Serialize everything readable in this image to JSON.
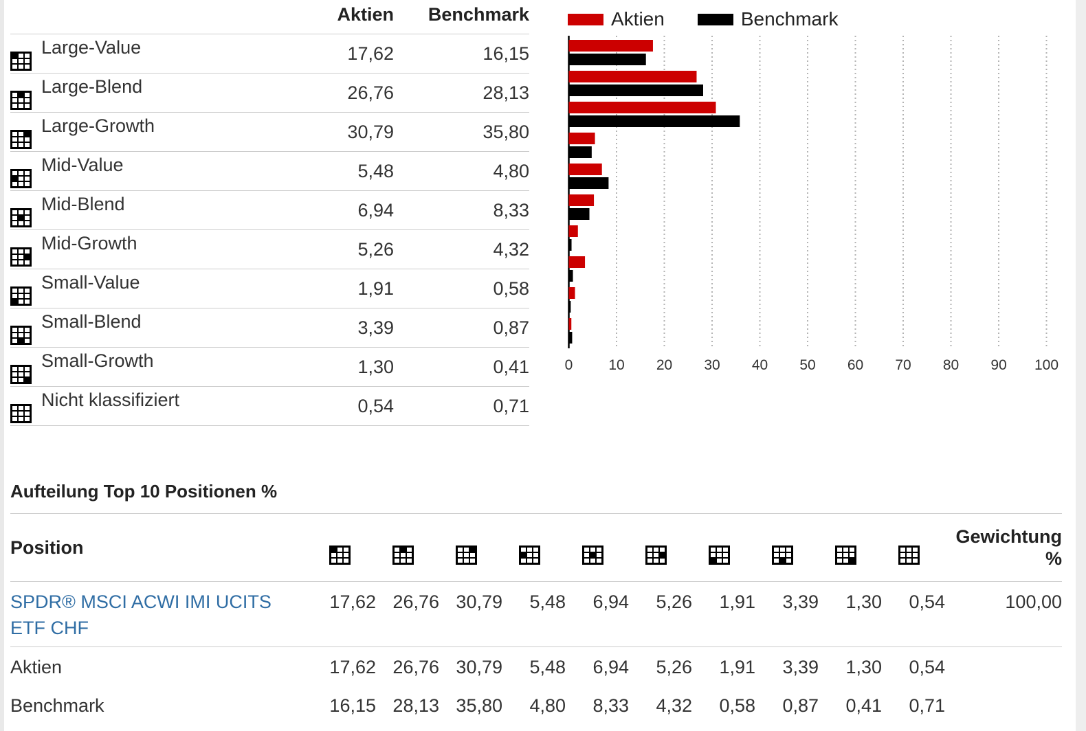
{
  "colors": {
    "aktien_red": "#cc0000",
    "benchmark_black": "#000000",
    "link_blue": "#2f6da4",
    "grid_gray": "#b3b3b3",
    "border_gray": "#cccccc"
  },
  "style_breakdown": {
    "column_headers": [
      "Aktien",
      "Benchmark"
    ],
    "rows": [
      {
        "label": "Large-Value",
        "icon": "stylebox-large-value-icon",
        "style_index": 0,
        "aktien": 17.62,
        "benchmark": 16.15
      },
      {
        "label": "Large-Blend",
        "icon": "stylebox-large-blend-icon",
        "style_index": 1,
        "aktien": 26.76,
        "benchmark": 28.13
      },
      {
        "label": "Large-Growth",
        "icon": "stylebox-large-growth-icon",
        "style_index": 2,
        "aktien": 30.79,
        "benchmark": 35.8
      },
      {
        "label": "Mid-Value",
        "icon": "stylebox-mid-value-icon",
        "style_index": 3,
        "aktien": 5.48,
        "benchmark": 4.8
      },
      {
        "label": "Mid-Blend",
        "icon": "stylebox-mid-blend-icon",
        "style_index": 4,
        "aktien": 6.94,
        "benchmark": 8.33
      },
      {
        "label": "Mid-Growth",
        "icon": "stylebox-mid-growth-icon",
        "style_index": 5,
        "aktien": 5.26,
        "benchmark": 4.32
      },
      {
        "label": "Small-Value",
        "icon": "stylebox-small-value-icon",
        "style_index": 6,
        "aktien": 1.91,
        "benchmark": 0.58
      },
      {
        "label": "Small-Blend",
        "icon": "stylebox-small-blend-icon",
        "style_index": 7,
        "aktien": 3.39,
        "benchmark": 0.87
      },
      {
        "label": "Small-Growth",
        "icon": "stylebox-small-growth-icon",
        "style_index": 8,
        "aktien": 1.3,
        "benchmark": 0.41
      },
      {
        "label": "Nicht klassifiziert",
        "icon": "stylebox-not-classified-icon",
        "style_index": -1,
        "aktien": 0.54,
        "benchmark": 0.71
      }
    ]
  },
  "chart_data": {
    "type": "bar",
    "orientation": "horizontal",
    "title": "",
    "categories": [
      "Large-Value",
      "Large-Blend",
      "Large-Growth",
      "Mid-Value",
      "Mid-Blend",
      "Mid-Growth",
      "Small-Value",
      "Small-Blend",
      "Small-Growth",
      "Nicht klassifiziert"
    ],
    "series": [
      {
        "name": "Aktien",
        "color": "#cc0000",
        "values": [
          17.62,
          26.76,
          30.79,
          5.48,
          6.94,
          5.26,
          1.91,
          3.39,
          1.3,
          0.54
        ]
      },
      {
        "name": "Benchmark",
        "color": "#000000",
        "values": [
          16.15,
          28.13,
          35.8,
          4.8,
          8.33,
          4.32,
          0.58,
          0.87,
          0.41,
          0.71
        ]
      }
    ],
    "xlim": [
      0,
      100
    ],
    "xticks": [
      0,
      10,
      20,
      30,
      40,
      50,
      60,
      70,
      80,
      90,
      100
    ],
    "grid": "vertical-dotted",
    "legend_position": "top-left"
  },
  "positions_section": {
    "heading": "Aufteilung Top 10 Positionen %",
    "position_header": "Position",
    "weight_header_lines": [
      "Gewichtung",
      "%"
    ],
    "icon_columns": [
      "large-value",
      "large-blend",
      "large-growth",
      "mid-value",
      "mid-blend",
      "mid-growth",
      "small-value",
      "small-blend",
      "small-growth",
      "not-classified"
    ],
    "rows": [
      {
        "label": "SPDR® MSCI ACWI IMI UCITS ETF CHF",
        "link": true,
        "values": [
          17.62,
          26.76,
          30.79,
          5.48,
          6.94,
          5.26,
          1.91,
          3.39,
          1.3,
          0.54
        ],
        "weight": 100.0
      },
      {
        "label": "Aktien",
        "link": false,
        "values": [
          17.62,
          26.76,
          30.79,
          5.48,
          6.94,
          5.26,
          1.91,
          3.39,
          1.3,
          0.54
        ],
        "weight": null
      },
      {
        "label": "Benchmark",
        "link": false,
        "values": [
          16.15,
          28.13,
          35.8,
          4.8,
          8.33,
          4.32,
          0.58,
          0.87,
          0.41,
          0.71
        ],
        "weight": null
      }
    ]
  }
}
